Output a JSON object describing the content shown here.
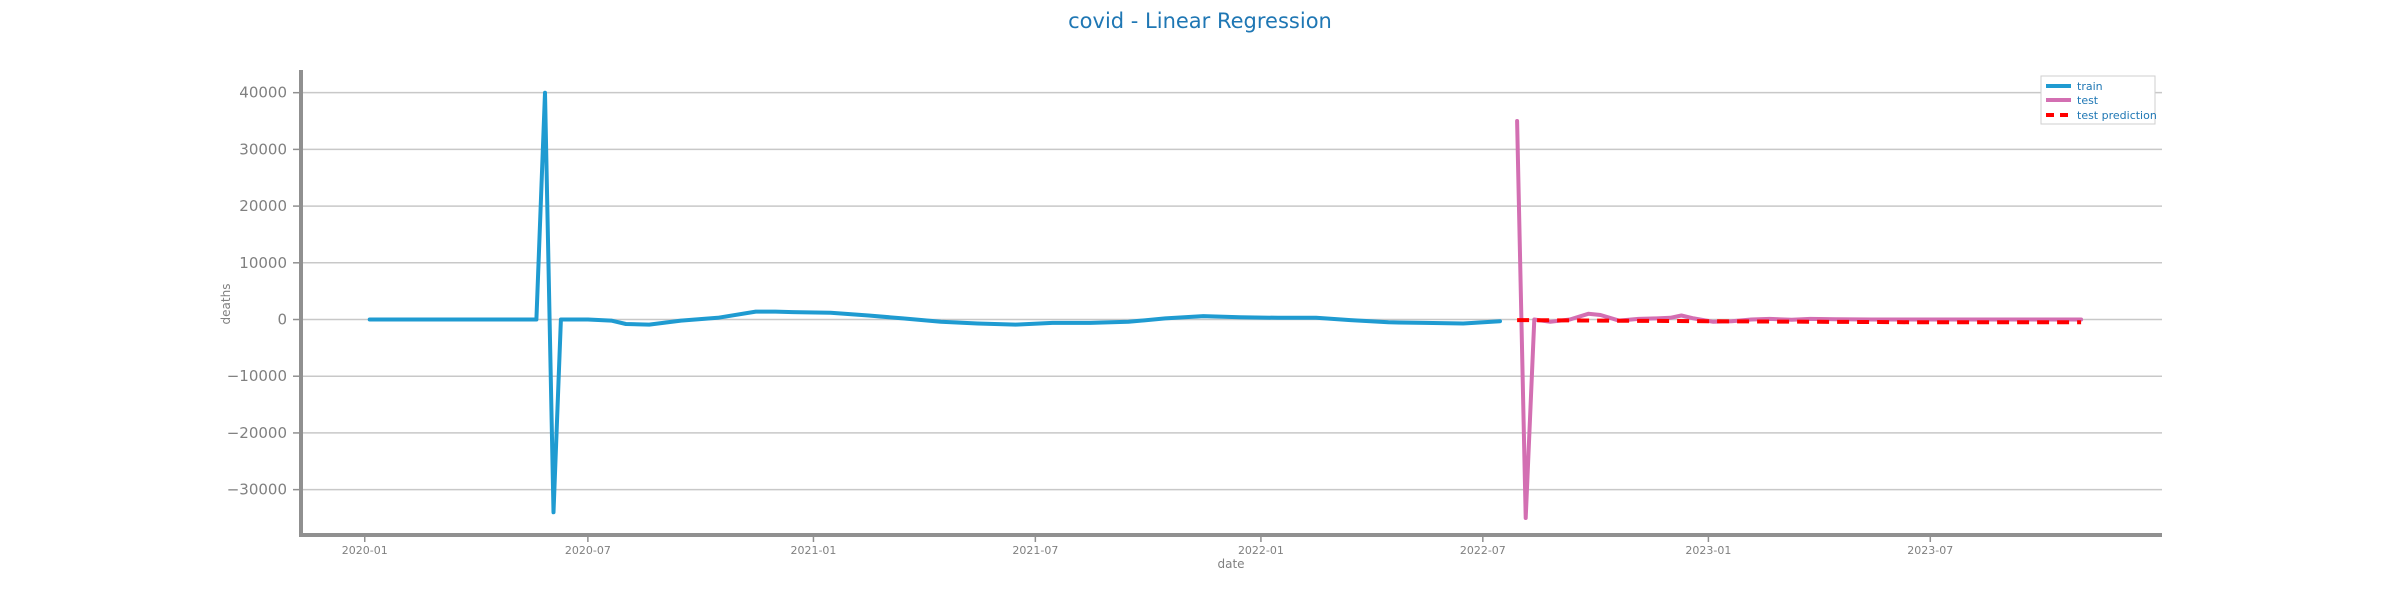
{
  "chart_data": {
    "type": "line",
    "title": "covid - Linear Regression",
    "xlabel": "date",
    "ylabel": "deaths",
    "xlim": [
      "2019-11-10",
      "2024-01-06"
    ],
    "ylim": [
      -38000,
      44000
    ],
    "grid": "horizontal",
    "legend_position": "top-right",
    "colors": {
      "title": "#1f77b4",
      "train": "#1f9bd1",
      "test": "#d36fb2",
      "test_prediction": "#ff0000",
      "grid": "#c8c8c8",
      "axis": "#909090",
      "ticks": "#808080"
    },
    "x_ticks": [
      {
        "date": "2020-01-01",
        "label": "2020-01"
      },
      {
        "date": "2020-07-01",
        "label": "2020-07"
      },
      {
        "date": "2021-01-01",
        "label": "2021-01"
      },
      {
        "date": "2021-07-01",
        "label": "2021-07"
      },
      {
        "date": "2022-01-01",
        "label": "2022-01"
      },
      {
        "date": "2022-07-01",
        "label": "2022-07"
      },
      {
        "date": "2023-01-01",
        "label": "2023-01"
      },
      {
        "date": "2023-07-01",
        "label": "2023-07"
      }
    ],
    "y_ticks": [
      {
        "value": 40000,
        "label": "40000"
      },
      {
        "value": 30000,
        "label": "30000"
      },
      {
        "value": 20000,
        "label": "20000"
      },
      {
        "value": 10000,
        "label": "10000"
      },
      {
        "value": 0,
        "label": "0"
      },
      {
        "value": -10000,
        "label": "−10000"
      },
      {
        "value": -20000,
        "label": "−20000"
      },
      {
        "value": -30000,
        "label": "−30000"
      }
    ],
    "series": [
      {
        "name": "train",
        "style": "solid",
        "points": [
          [
            "2020-01-05",
            0
          ],
          [
            "2020-02-15",
            0
          ],
          [
            "2020-03-15",
            0
          ],
          [
            "2020-04-15",
            0
          ],
          [
            "2020-05-15",
            0
          ],
          [
            "2020-05-20",
            0
          ],
          [
            "2020-05-27",
            40000
          ],
          [
            "2020-06-03",
            -34000
          ],
          [
            "2020-06-09",
            0
          ],
          [
            "2020-07-01",
            0
          ],
          [
            "2020-07-20",
            -200
          ],
          [
            "2020-08-01",
            -800
          ],
          [
            "2020-08-20",
            -900
          ],
          [
            "2020-09-15",
            -200
          ],
          [
            "2020-10-15",
            300
          ],
          [
            "2020-11-15",
            1400
          ],
          [
            "2020-12-01",
            1400
          ],
          [
            "2020-12-15",
            1300
          ],
          [
            "2021-01-15",
            1200
          ],
          [
            "2021-02-15",
            700
          ],
          [
            "2021-03-15",
            200
          ],
          [
            "2021-04-15",
            -400
          ],
          [
            "2021-05-15",
            -700
          ],
          [
            "2021-06-15",
            -900
          ],
          [
            "2021-07-15",
            -600
          ],
          [
            "2021-08-15",
            -600
          ],
          [
            "2021-09-15",
            -400
          ],
          [
            "2021-10-15",
            200
          ],
          [
            "2021-11-15",
            600
          ],
          [
            "2021-12-15",
            400
          ],
          [
            "2022-01-15",
            300
          ],
          [
            "2022-02-15",
            300
          ],
          [
            "2022-03-15",
            -100
          ],
          [
            "2022-04-15",
            -500
          ],
          [
            "2022-05-15",
            -600
          ],
          [
            "2022-06-15",
            -700
          ],
          [
            "2022-07-15",
            -300
          ]
        ]
      },
      {
        "name": "test",
        "style": "solid",
        "points": [
          [
            "2022-07-29",
            35000
          ],
          [
            "2022-08-05",
            -35000
          ],
          [
            "2022-08-12",
            0
          ],
          [
            "2022-08-25",
            -400
          ],
          [
            "2022-09-10",
            0
          ],
          [
            "2022-09-25",
            1000
          ],
          [
            "2022-10-05",
            800
          ],
          [
            "2022-10-20",
            -200
          ],
          [
            "2022-11-05",
            100
          ],
          [
            "2022-11-20",
            200
          ],
          [
            "2022-12-01",
            300
          ],
          [
            "2022-12-10",
            700
          ],
          [
            "2022-12-20",
            200
          ],
          [
            "2023-01-05",
            -400
          ],
          [
            "2023-01-20",
            -300
          ],
          [
            "2023-02-05",
            0
          ],
          [
            "2023-02-20",
            100
          ],
          [
            "2023-03-10",
            -50
          ],
          [
            "2023-03-25",
            100
          ],
          [
            "2023-04-15",
            50
          ],
          [
            "2023-05-15",
            0
          ],
          [
            "2023-06-15",
            0
          ],
          [
            "2023-07-15",
            0
          ],
          [
            "2023-08-15",
            0
          ],
          [
            "2023-09-15",
            0
          ],
          [
            "2023-10-15",
            0
          ],
          [
            "2023-11-01",
            0
          ]
        ]
      },
      {
        "name": "test prediction",
        "style": "dashed",
        "points": [
          [
            "2022-07-29",
            -100
          ],
          [
            "2022-10-01",
            -200
          ],
          [
            "2023-01-01",
            -300
          ],
          [
            "2023-04-01",
            -400
          ],
          [
            "2023-07-01",
            -500
          ],
          [
            "2023-11-01",
            -500
          ]
        ]
      }
    ]
  }
}
